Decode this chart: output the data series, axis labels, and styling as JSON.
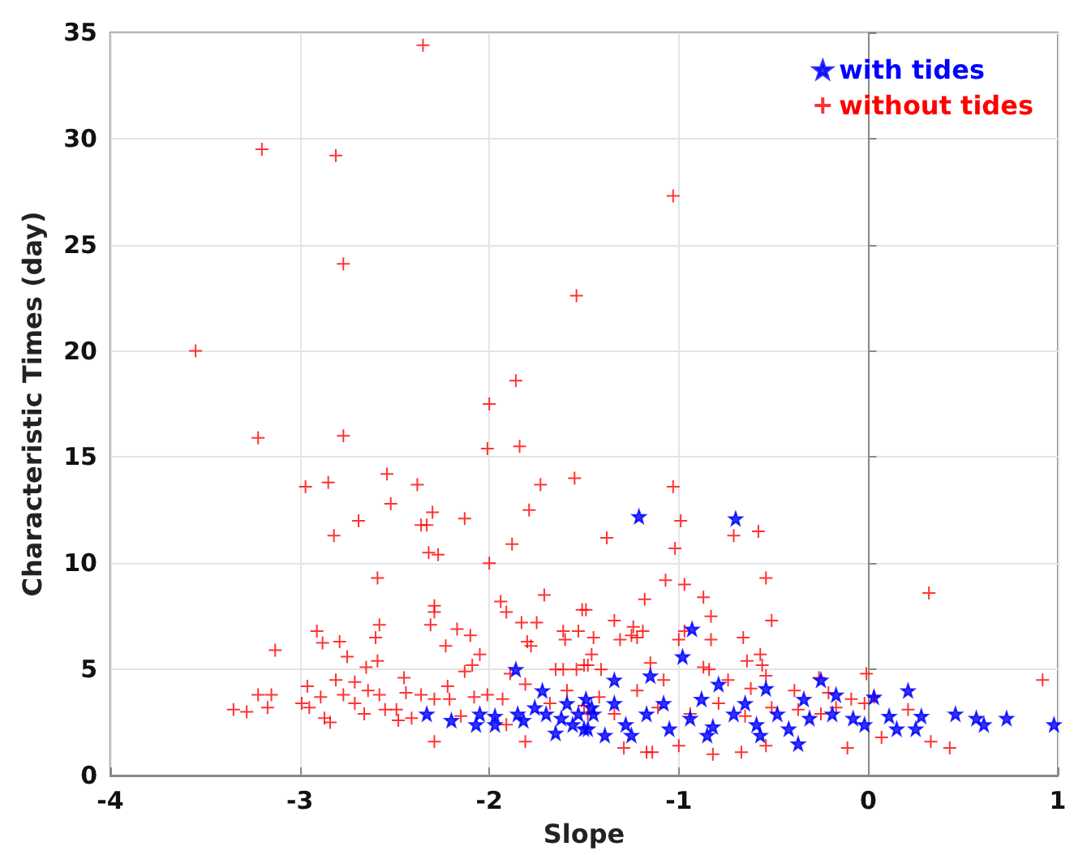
{
  "chart_data": {
    "type": "scatter",
    "xlabel": "Slope",
    "ylabel": "Characteristic Times (day)",
    "xlim": [
      -4,
      1
    ],
    "xticks": [
      -4,
      -3,
      -2,
      -1,
      0,
      1
    ],
    "ylim": [
      0,
      35
    ],
    "yticks": [
      0,
      5,
      10,
      15,
      20,
      25,
      30,
      35
    ],
    "grid": true,
    "legend": "top right",
    "series": [
      {
        "name": "with tides",
        "color": "#0000ff",
        "marker": "star",
        "x": [
          -1.86,
          -2.33,
          -2.2,
          -2.07,
          -2.05,
          -1.97,
          -1.97,
          -1.85,
          -1.82,
          -1.76,
          -1.72,
          -1.7,
          -1.65,
          -1.62,
          -1.59,
          -1.56,
          -1.53,
          -1.5,
          -1.49,
          -1.46,
          -1.21,
          -0.7,
          -0.93,
          -0.98,
          -1.15,
          -1.34,
          -0.79,
          -0.54,
          -0.25,
          0.21,
          0.03,
          0.46,
          0.28,
          0.57,
          0.61,
          0.73,
          0.98,
          0.25,
          0.15,
          0.11,
          -0.37,
          -1.45,
          -1.39,
          -1.28,
          -1.17,
          -1.05,
          -0.94,
          -0.82,
          -0.71,
          -0.59,
          -0.48,
          -0.42,
          -0.31,
          -0.19,
          -0.08,
          -0.02,
          -1.34,
          -1.08,
          -0.88,
          -0.65,
          -0.34,
          -0.17,
          -1.25,
          -0.85,
          -0.57,
          -1.48
        ],
        "values": [
          5.0,
          2.9,
          2.6,
          2.4,
          2.9,
          2.8,
          2.4,
          2.9,
          2.6,
          3.2,
          4.0,
          2.9,
          2.0,
          2.7,
          3.4,
          2.4,
          2.9,
          2.2,
          3.6,
          3.2,
          12.2,
          12.1,
          6.9,
          5.6,
          4.7,
          4.5,
          4.3,
          4.1,
          4.5,
          4.0,
          3.7,
          2.9,
          2.8,
          2.7,
          2.4,
          2.7,
          2.4,
          2.2,
          2.2,
          2.8,
          1.5,
          2.9,
          1.9,
          2.4,
          2.9,
          2.2,
          2.7,
          2.3,
          2.9,
          2.4,
          2.9,
          2.2,
          2.7,
          2.9,
          2.7,
          2.4,
          3.4,
          3.4,
          3.6,
          3.4,
          3.6,
          3.8,
          1.9,
          1.9,
          1.9,
          2.2
        ]
      },
      {
        "name": "without tides",
        "color": "#ff0000",
        "marker": "cross",
        "x": [
          -2.35,
          -3.2,
          -2.81,
          -2.77,
          -1.54,
          -3.55,
          -1.86,
          -1.03,
          -2.0,
          -3.22,
          -2.77,
          -2.01,
          -1.84,
          -2.97,
          -2.85,
          -2.54,
          -2.38,
          -2.52,
          -2.69,
          -2.82,
          -2.3,
          -2.36,
          -2.33,
          -2.13,
          -1.73,
          -1.55,
          -1.79,
          -1.88,
          -2.32,
          -2.27,
          -2.0,
          -2.59,
          -1.71,
          -2.29,
          -2.29,
          -1.94,
          -1.91,
          -1.51,
          -2.91,
          -2.88,
          -2.79,
          -2.58,
          -2.6,
          -2.31,
          -2.17,
          -2.1,
          -2.23,
          -1.83,
          -1.75,
          -1.8,
          -1.78,
          -1.61,
          -1.6,
          -1.53,
          -3.13,
          -2.75,
          -2.59,
          -2.65,
          -2.05,
          -2.09,
          -2.13,
          -1.65,
          -1.61,
          -1.54,
          -1.5,
          -2.96,
          -2.81,
          -2.71,
          -2.45,
          -2.22,
          -3.35,
          -3.28,
          -3.22,
          -3.15,
          -3.17,
          -2.99,
          -2.95,
          -2.89,
          -2.87,
          -2.84,
          -2.77,
          -2.71,
          -2.66,
          -2.64,
          -2.58,
          -2.55,
          -2.49,
          -2.48,
          -2.44,
          -2.41,
          -2.36,
          -2.29,
          -2.29,
          -2.21,
          -2.15,
          -2.08,
          -2.01,
          -1.93,
          -1.89,
          -1.81,
          -1.81,
          -1.91,
          -1.68,
          -1.59,
          -1.5,
          -1.48,
          -1.03,
          -1.38,
          -0.99,
          -1.02,
          -0.71,
          -0.58,
          -1.07,
          -0.97,
          -0.54,
          0.32,
          -1.18,
          -0.87,
          -0.83,
          -0.51,
          -1.34,
          -1.24,
          -1.25,
          -1.22,
          -1.19,
          -1.45,
          -1.31,
          -1.0,
          -0.97,
          -0.83,
          -0.66,
          -1.49,
          -1.46,
          -1.15,
          -0.87,
          -0.84,
          -0.64,
          -0.57,
          -0.56,
          -0.54,
          -1.41,
          -1.48,
          -0.01,
          0.92,
          -0.26,
          0.21,
          0.33,
          0.43,
          0.07,
          -0.11,
          -0.54,
          -0.67,
          -0.82,
          -1.0,
          -1.17,
          -1.14,
          -1.29,
          -1.42,
          -1.22,
          -1.08,
          -0.74,
          -0.62,
          -0.39,
          -0.21,
          -0.09,
          -0.02,
          -1.34,
          -1.11,
          -0.94,
          -0.79,
          -0.65,
          -0.51,
          -0.37,
          -0.25,
          -0.17,
          0.03
        ],
        "values": [
          34.4,
          29.5,
          29.2,
          24.1,
          22.6,
          20.0,
          18.6,
          27.3,
          17.5,
          15.9,
          16.0,
          15.4,
          15.5,
          13.6,
          13.8,
          14.2,
          13.7,
          12.8,
          12.0,
          11.3,
          12.4,
          11.8,
          11.8,
          12.1,
          13.7,
          14.0,
          12.5,
          10.9,
          10.5,
          10.4,
          10.0,
          9.3,
          8.5,
          8.0,
          7.7,
          8.2,
          7.7,
          7.8,
          6.8,
          6.25,
          6.3,
          7.1,
          6.5,
          7.1,
          6.9,
          6.6,
          6.1,
          7.2,
          7.2,
          6.3,
          6.1,
          6.8,
          6.4,
          6.8,
          5.9,
          5.6,
          5.4,
          5.1,
          5.7,
          5.2,
          4.9,
          5.0,
          5.0,
          5.0,
          5.2,
          4.2,
          4.5,
          4.4,
          4.6,
          4.2,
          3.1,
          3.0,
          3.8,
          3.8,
          3.2,
          3.4,
          3.2,
          3.7,
          2.7,
          2.5,
          3.8,
          3.4,
          2.9,
          4.0,
          3.8,
          3.1,
          3.1,
          2.6,
          3.9,
          2.7,
          3.8,
          3.6,
          1.6,
          3.6,
          2.8,
          3.7,
          3.8,
          3.6,
          4.8,
          4.3,
          1.6,
          2.4,
          3.4,
          4.0,
          3.3,
          2.9,
          13.6,
          11.2,
          12.0,
          10.7,
          11.3,
          11.5,
          9.2,
          9.0,
          9.3,
          8.6,
          8.3,
          8.4,
          7.5,
          7.3,
          7.3,
          7.0,
          6.6,
          6.5,
          6.8,
          6.5,
          6.4,
          6.4,
          6.8,
          6.4,
          6.5,
          7.8,
          5.7,
          5.3,
          5.1,
          5.0,
          5.4,
          5.7,
          5.2,
          4.7,
          5.0,
          5.2,
          4.8,
          4.5,
          4.6,
          3.1,
          1.6,
          1.3,
          1.8,
          1.3,
          1.4,
          1.1,
          1.0,
          1.4,
          1.1,
          1.1,
          1.3,
          3.7,
          4.0,
          4.5,
          4.5,
          4.1,
          4.0,
          3.9,
          3.6,
          3.4,
          2.9,
          3.2,
          2.9,
          3.4,
          2.8,
          3.2,
          3.1,
          2.9,
          3.2,
          3.7
        ]
      }
    ]
  }
}
